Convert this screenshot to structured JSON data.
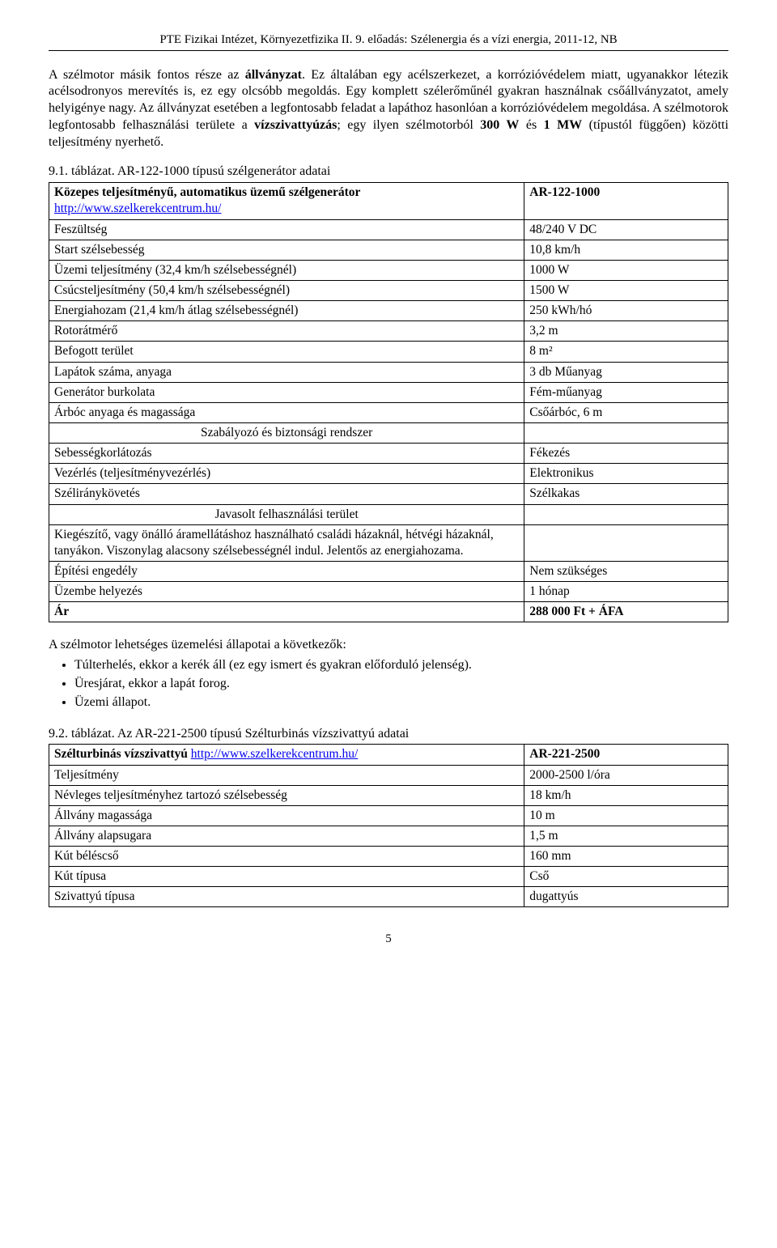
{
  "header": "PTE Fizikai Intézet, Környezetfizika II. 9. előadás: Szélenergia és a vízi energia, 2011-12, NB",
  "para1_a": "A szélmotor másik fontos része az ",
  "para1_b": "állványzat",
  "para1_c": ". Ez általában egy acélszerkezet, a korrózióvédelem miatt, ugyanakkor létezik acélsodronyos merevítés is, ez egy olcsóbb megoldás. Egy komplett szélerőműnél gyakran használnak csőállványzatot, amely helyigénye nagy. Az állványzat esetében a legfontosabb feladat a lapáthoz hasonlóan a korrózióvédelem megoldása. A szélmotorok legfontosabb felhasználási területe a ",
  "para1_d": "vízszivattyúzás",
  "para1_e": "; egy ilyen szélmotorból ",
  "para1_f": "300 W",
  "para1_g": " és ",
  "para1_h": "1 MW",
  "para1_i": " (típustól függően) közötti teljesítmény nyerhető.",
  "table1": {
    "caption": "9.1. táblázat. AR-122-1000 típusú szélgenerátor adatai",
    "header_left_bold": "Közepes teljesítményű, automatikus üzemű szélgenerátor",
    "header_left_link": "http://www.szelkerekcentrum.hu/",
    "header_right": "AR-122-1000",
    "rows": [
      {
        "l": "Feszültség",
        "r": "48/240 V DC"
      },
      {
        "l": "Start szélsebesség",
        "r": "10,8 km/h"
      },
      {
        "l": "Üzemi teljesítmény (32,4 km/h szélsebességnél)",
        "r": "1000 W"
      },
      {
        "l": "Csúcsteljesítmény (50,4 km/h szélsebességnél)",
        "r": "1500 W"
      },
      {
        "l": "Energiahozam (21,4 km/h átlag szélsebességnél)",
        "r": "250 kWh/hó"
      },
      {
        "l": "Rotorátmérő",
        "r": "3,2 m"
      },
      {
        "l": "Befogott terület",
        "r": "8 m²"
      },
      {
        "l": "Lapátok száma, anyaga",
        "r": "3 db Műanyag"
      },
      {
        "l": "Generátor burkolata",
        "r": "Fém-műanyag"
      },
      {
        "l": "Árbóc anyaga és magassága",
        "r": "Csőárbóc, 6 m"
      }
    ],
    "section1": "Szabályozó és biztonsági rendszer",
    "rows2": [
      {
        "l": "Sebességkorlátozás",
        "r": "Fékezés"
      },
      {
        "l": "Vezérlés (teljesítményvezérlés)",
        "r": "Elektronikus"
      },
      {
        "l": "Széliránykövetés",
        "r": "Szélkakas"
      }
    ],
    "section2": "Javasolt felhasználási terület",
    "rows3": [
      {
        "l": "Kiegészítő, vagy önálló áramellátáshoz használható családi házaknál, hétvégi házaknál, tanyákon. Viszonylag alacsony szélsebességnél indul. Jelentős az energiahozama.",
        "r": ""
      },
      {
        "l": "Építési engedély",
        "r": "Nem szükséges"
      },
      {
        "l": "Üzembe helyezés",
        "r": "1 hónap"
      },
      {
        "l": "Ár",
        "r": "288 000 Ft + ÁFA"
      }
    ]
  },
  "para2": "A szélmotor lehetséges üzemelési állapotai a következők:",
  "bullets": [
    "Túlterhelés, ekkor a kerék áll (ez egy ismert és gyakran előforduló jelenség).",
    "Üresjárat, ekkor a lapát forog.",
    "Üzemi állapot."
  ],
  "table2": {
    "caption": "9.2. táblázat. Az AR-221-2500 típusú Szélturbinás vízszivattyú adatai",
    "header_left_bold": "Szélturbinás vízszivattyú ",
    "header_left_link": "http://www.szelkerekcentrum.hu/",
    "header_right": "AR-221-2500",
    "rows": [
      {
        "l": "Teljesítmény",
        "r": "2000-2500 l/óra"
      },
      {
        "l": "Névleges teljesítményhez tartozó szélsebesség",
        "r": "18 km/h"
      },
      {
        "l": "Állvány magassága",
        "r": "10 m"
      },
      {
        "l": "Állvány alapsugara",
        "r": "1,5 m"
      },
      {
        "l": "Kút béléscső",
        "r": "160 mm"
      },
      {
        "l": "Kút típusa",
        "r": "Cső"
      },
      {
        "l": "Szivattyú típusa",
        "r": "dugattyús"
      }
    ]
  },
  "pagenum": "5"
}
